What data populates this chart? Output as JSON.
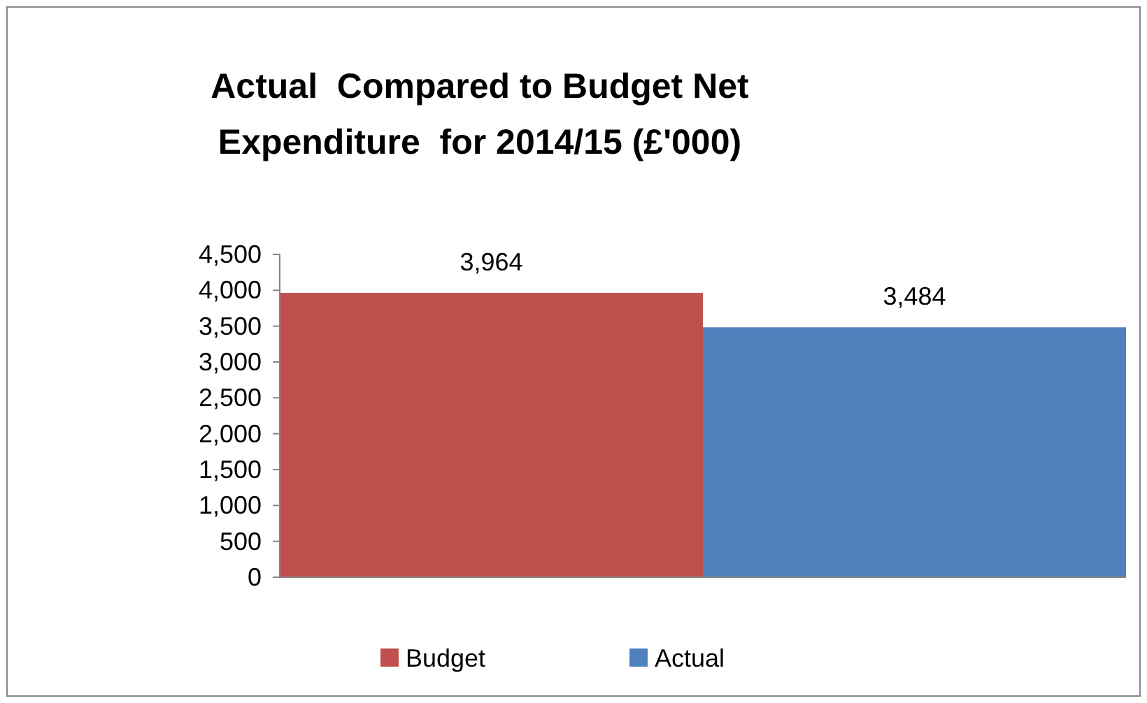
{
  "chart_data": {
    "type": "bar",
    "title": "Actual  Compared to Budget Net Expenditure  for 2014/15 (£'000)",
    "categories": [
      null
    ],
    "series": [
      {
        "name": "Budget",
        "color": "#c0504d",
        "values": [
          3964
        ],
        "value_labels": [
          "3,964"
        ]
      },
      {
        "name": "Actual",
        "color": "#4f81bd",
        "values": [
          3484
        ],
        "value_labels": [
          "3,484"
        ]
      }
    ],
    "ylim": [
      0,
      4500
    ],
    "yticks": [
      0,
      500,
      {
        "value": 1000,
        "label": "1,000"
      },
      {
        "value": 1500,
        "label": "1,500"
      },
      {
        "value": 2000,
        "label": "2,000"
      },
      {
        "value": 2500,
        "label": "2,500"
      },
      {
        "value": 3000,
        "label": "3,000"
      },
      {
        "value": 3500,
        "label": "3,500"
      },
      {
        "value": 4000,
        "label": "4,000"
      },
      {
        "value": 4500,
        "label": "4,500"
      }
    ],
    "legend": "bottom",
    "grid": false
  }
}
